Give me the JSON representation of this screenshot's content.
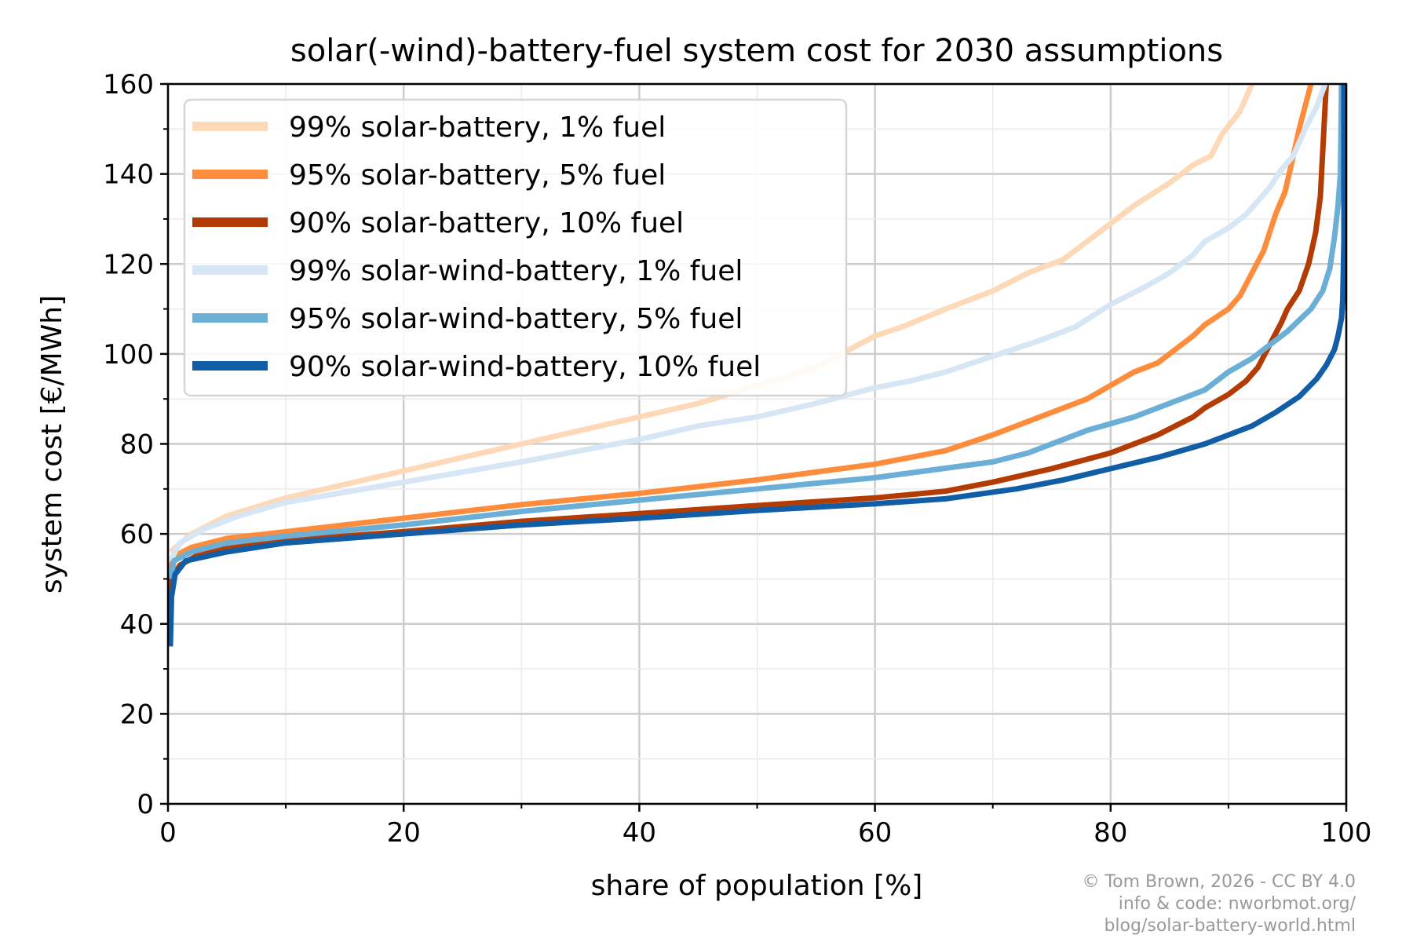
{
  "chart_data": {
    "type": "line",
    "title": "solar(-wind)-battery-fuel system cost for 2030 assumptions",
    "xlabel": "share of population [%]",
    "ylabel": "system cost [€/MWh]",
    "xlim": [
      0,
      100
    ],
    "ylim": [
      0,
      160
    ],
    "xticks": [
      "0",
      "20",
      "40",
      "60",
      "80",
      "100"
    ],
    "yticks": [
      "0",
      "20",
      "40",
      "60",
      "80",
      "100",
      "120",
      "140",
      "160"
    ],
    "grid": true,
    "minor_grid": true,
    "legend_placement": "upper-left",
    "series": [
      {
        "name": "99% solar-battery, 1% fuel",
        "color": "#fdd9b8",
        "x": [
          0.2,
          2,
          5,
          10,
          20,
          30,
          40,
          45,
          50,
          55,
          60,
          62.3,
          66,
          70,
          73,
          76,
          78,
          80,
          82,
          85,
          87,
          88.5,
          89.5,
          91,
          92
        ],
        "y": [
          56,
          60,
          64,
          68,
          74,
          80,
          86,
          89,
          93,
          97,
          104,
          106,
          110,
          114,
          118,
          121,
          125,
          129,
          133,
          138,
          142,
          144,
          149,
          154,
          160
        ]
      },
      {
        "name": "95% solar-battery, 5% fuel",
        "color": "#fd8d3c",
        "x": [
          0.2,
          0.5,
          2,
          5,
          10,
          20,
          30,
          40,
          50,
          60,
          66,
          70,
          74,
          78,
          80,
          82,
          84,
          85,
          87,
          88,
          90,
          91,
          92,
          93,
          93.5,
          94,
          94.8,
          95.5,
          96,
          97
        ],
        "y": [
          52,
          55,
          57,
          59,
          60.5,
          63.5,
          66.5,
          69,
          72,
          75.5,
          78.5,
          82,
          86,
          90,
          93,
          96,
          98,
          100,
          104,
          106.5,
          110,
          113,
          118,
          123,
          127,
          131,
          136,
          144,
          150,
          160
        ]
      },
      {
        "name": "90% solar-battery, 10% fuel",
        "color": "#b33c04",
        "x": [
          0.2,
          0.3,
          1,
          3,
          10,
          20,
          30,
          40,
          50,
          60,
          66,
          70,
          75,
          80,
          84,
          87,
          88,
          90,
          91.5,
          92.5,
          93.5,
          94.5,
          95,
          96,
          96.8,
          97.4,
          97.8,
          98,
          98.3
        ],
        "y": [
          40,
          50,
          53,
          56,
          58.5,
          60.5,
          62.8,
          64.5,
          66.3,
          68,
          69.5,
          71.5,
          74.5,
          78,
          82,
          86,
          88,
          91,
          94,
          97,
          102,
          107,
          110,
          114,
          120,
          127,
          135,
          145,
          160
        ]
      },
      {
        "name": "99% solar-wind-battery, 1% fuel",
        "color": "#d6e6f4",
        "x": [
          0.2,
          1,
          3,
          6,
          10,
          20,
          30,
          40,
          45,
          50,
          55,
          60,
          63,
          66,
          70,
          74,
          77,
          80,
          83,
          85,
          87,
          88,
          90,
          91.5,
          92.5,
          93.5,
          94.5,
          95.5,
          96.5,
          97.5,
          98.2
        ],
        "y": [
          54,
          58,
          61,
          64,
          67,
          71.5,
          76,
          81,
          84,
          86,
          89,
          92.5,
          94,
          96,
          99.5,
          103,
          106,
          111,
          115,
          118,
          122,
          125,
          128,
          131,
          134,
          137,
          141,
          144,
          150,
          155,
          160
        ]
      },
      {
        "name": "95% solar-wind-battery, 5% fuel",
        "color": "#6baed6",
        "x": [
          0.2,
          0.5,
          2,
          5,
          10,
          20,
          30,
          40,
          50,
          60,
          70,
          73,
          75,
          78,
          82,
          84,
          88,
          90,
          92,
          93,
          95,
          97,
          98,
          98.6,
          99,
          99.3,
          99.5,
          99.6
        ],
        "y": [
          50,
          54,
          56,
          58,
          59.5,
          62,
          65,
          67.5,
          70,
          72.5,
          76,
          78,
          80,
          83,
          86,
          88,
          92,
          96,
          99,
          101,
          105,
          110,
          114,
          119,
          126,
          133,
          140,
          160
        ]
      },
      {
        "name": "90% solar-wind-battery, 10% fuel",
        "color": "#125ea6",
        "x": [
          0.2,
          0.3,
          0.6,
          1.5,
          5,
          10,
          20,
          30,
          40,
          50,
          60,
          66,
          72,
          76,
          80,
          84,
          88,
          92,
          94,
          96,
          97.5,
          98.3,
          99,
          99.3,
          99.6,
          99.7,
          99.8,
          99.8
        ],
        "y": [
          35,
          46,
          51,
          54,
          56,
          58,
          60,
          62,
          63.5,
          65.2,
          66.7,
          67.8,
          70,
          72,
          74.5,
          77,
          80,
          84,
          87,
          90.5,
          94.5,
          97.5,
          101,
          104,
          108,
          112,
          125,
          160
        ]
      }
    ]
  },
  "credit": {
    "line1": "© Tom Brown, 2026 - CC BY 4.0",
    "line2": "info & code: nworbmot.org/",
    "line3": "blog/solar-battery-world.html"
  }
}
